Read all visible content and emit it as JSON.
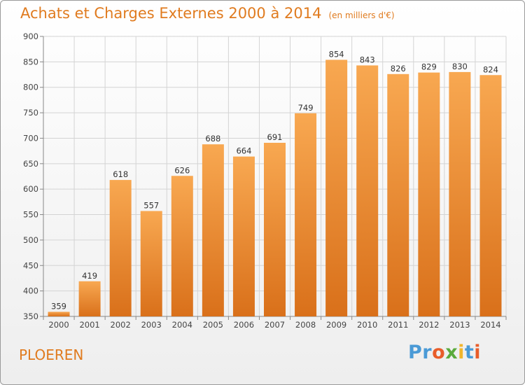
{
  "title": "Achats et Charges Externes 2000 à 2014",
  "unit": "(en milliers d'€)",
  "commune": "PLOEREN",
  "logo": [
    "P",
    "r",
    "o",
    "x",
    "i",
    "t",
    "i"
  ],
  "colors": {
    "accent": "#e07b1f",
    "bar_top": "#f8a851",
    "bar_bottom": "#d9701a",
    "grid": "#d4d4d4",
    "logo": [
      "#4a9ad6",
      "#4a9ad6",
      "#e85d2a",
      "#5aaa3c",
      "#f0b52c",
      "#4a9ad6",
      "#e85d2a"
    ]
  },
  "chart_data": {
    "type": "bar",
    "categories": [
      "2000",
      "2001",
      "2002",
      "2003",
      "2004",
      "2005",
      "2006",
      "2007",
      "2008",
      "2009",
      "2010",
      "2011",
      "2012",
      "2013",
      "2014"
    ],
    "values": [
      359,
      419,
      618,
      557,
      626,
      688,
      664,
      691,
      749,
      854,
      843,
      826,
      829,
      830,
      824
    ],
    "ylim": [
      350,
      900
    ],
    "yticks": [
      350,
      400,
      450,
      500,
      550,
      600,
      650,
      700,
      750,
      800,
      850,
      900
    ],
    "grid": true,
    "xlabel": "",
    "ylabel": ""
  }
}
